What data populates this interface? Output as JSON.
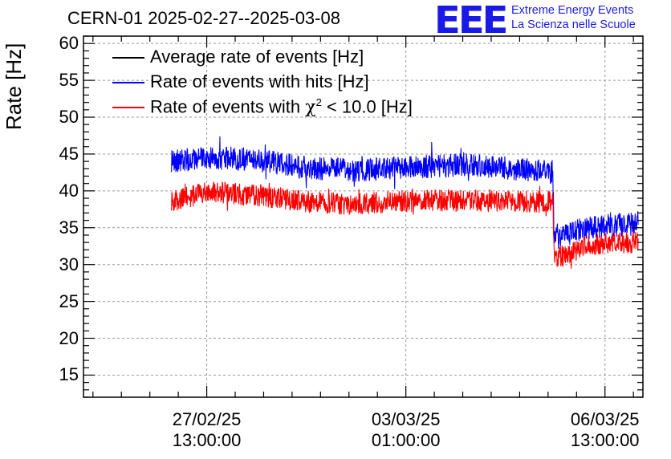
{
  "header": {
    "title": "CERN-01 2025-02-27--2025-03-08",
    "logo_mark": "EEE",
    "logo_line1": "Extreme Energy Events",
    "logo_line2": "La Scienza nelle Scuole"
  },
  "chart_data": {
    "type": "line",
    "title": "CERN-01 2025-02-27--2025-03-08",
    "xlabel": "",
    "ylabel": "Rate [Hz]",
    "ylim": [
      12,
      61
    ],
    "xlim_hours": [
      -52,
      184
    ],
    "y_ticks": [
      15,
      20,
      25,
      30,
      35,
      40,
      45,
      50,
      55,
      60
    ],
    "x_ticks": [
      {
        "t": 0,
        "line1": "27/02/25",
        "line2": "13:00:00"
      },
      {
        "t": 84,
        "line1": "03/03/25",
        "line2": "01:00:00"
      },
      {
        "t": 168,
        "line1": "06/03/25",
        "line2": "13:00:00"
      }
    ],
    "grid": true,
    "legend_position": "top-left",
    "series": [
      {
        "name": "Average rate of events [Hz]",
        "color": "#000000",
        "points": []
      },
      {
        "name": "Rate of events with hits [Hz]",
        "color": "#0000ff",
        "noise": 1.6,
        "points": [
          [
            -15,
            44.0
          ],
          [
            0,
            44.5
          ],
          [
            20,
            44.3
          ],
          [
            40,
            43.2
          ],
          [
            60,
            42.8
          ],
          [
            84,
            43.2
          ],
          [
            110,
            43.5
          ],
          [
            140,
            42.7
          ],
          [
            146,
            42.5
          ],
          [
            146.5,
            34.5
          ],
          [
            150,
            33.8
          ],
          [
            160,
            35.0
          ],
          [
            170,
            35.3
          ],
          [
            180,
            35.5
          ],
          [
            182,
            36.2
          ]
        ]
      },
      {
        "name": "Rate of events with χ² < 10.0 [Hz]",
        "name_parts": [
          "Rate of events with ",
          "χ",
          "2",
          " < 10.0 [Hz]"
        ],
        "color": "#ff0000",
        "noise": 1.5,
        "points": [
          [
            -15,
            38.5
          ],
          [
            0,
            39.8
          ],
          [
            20,
            39.5
          ],
          [
            40,
            38.6
          ],
          [
            60,
            38.2
          ],
          [
            84,
            38.6
          ],
          [
            110,
            38.8
          ],
          [
            140,
            38.5
          ],
          [
            146,
            38.6
          ],
          [
            146.5,
            31.0
          ],
          [
            150,
            31.2
          ],
          [
            160,
            32.6
          ],
          [
            170,
            32.8
          ],
          [
            180,
            33.0
          ],
          [
            182,
            33.3
          ]
        ]
      }
    ]
  }
}
